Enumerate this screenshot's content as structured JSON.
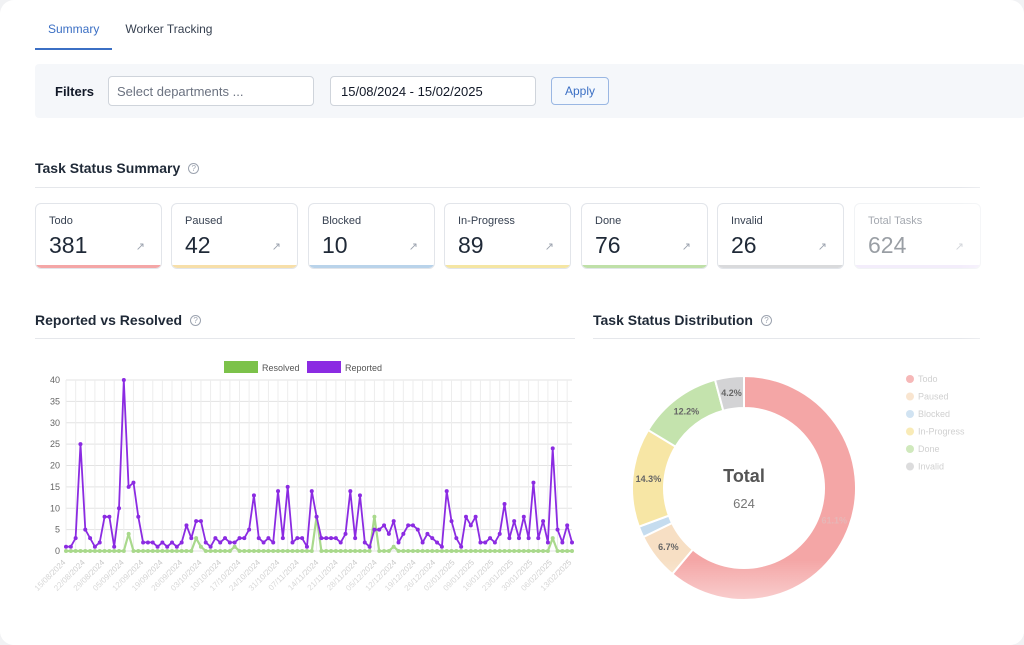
{
  "tabs": [
    {
      "label": "Summary",
      "active": true
    },
    {
      "label": "Worker Tracking",
      "active": false
    }
  ],
  "filters": {
    "label": "Filters",
    "departments_placeholder": "Select departments ...",
    "date_range": "15/08/2024 - 15/02/2025",
    "apply_label": "Apply"
  },
  "summary": {
    "title": "Task Status Summary",
    "cards": [
      {
        "label": "Todo",
        "value": "381",
        "color": "#f4a6a6"
      },
      {
        "label": "Paused",
        "value": "42",
        "color": "#f7dfa9"
      },
      {
        "label": "Blocked",
        "value": "10",
        "color": "#b9d3ea"
      },
      {
        "label": "In-Progress",
        "value": "89",
        "color": "#f5e6a3"
      },
      {
        "label": "Done",
        "value": "76",
        "color": "#bfe0a8"
      },
      {
        "label": "Invalid",
        "value": "26",
        "color": "#d9dadc"
      },
      {
        "label": "Total Tasks",
        "value": "624",
        "color": "#e5d9f7"
      }
    ]
  },
  "reported_section": {
    "title": "Reported vs Resolved"
  },
  "distribution_section": {
    "title": "Task Status Distribution"
  },
  "chart_data": [
    {
      "type": "line",
      "legend": [
        {
          "name": "Resolved",
          "color": "#7cc24a"
        },
        {
          "name": "Reported",
          "color": "#8b2be2"
        }
      ],
      "ylim": [
        0,
        40
      ],
      "yticks": [
        0,
        5,
        10,
        15,
        20,
        25,
        30,
        35,
        40
      ],
      "x_tick_labels": [
        "15/08/2024",
        "22/08/2024",
        "29/08/2024",
        "05/09/2024",
        "12/09/2024",
        "19/09/2024",
        "26/09/2024",
        "03/10/2024",
        "10/10/2024",
        "17/10/2024",
        "24/10/2024",
        "31/10/2024",
        "07/11/2024",
        "14/11/2024",
        "21/11/2024",
        "28/11/2024",
        "05/12/2024",
        "12/12/2024",
        "19/12/2024",
        "26/12/2024",
        "02/01/2025",
        "09/01/2025",
        "16/01/2025",
        "23/01/2025",
        "30/01/2025",
        "06/02/2025",
        "13/02/2025"
      ],
      "series": [
        {
          "name": "Reported",
          "values": [
            1,
            1,
            3,
            25,
            5,
            3,
            1,
            2,
            8,
            8,
            1,
            10,
            40,
            15,
            16,
            8,
            2,
            2,
            2,
            1,
            2,
            1,
            2,
            1,
            2,
            6,
            3,
            7,
            7,
            2,
            1,
            3,
            2,
            3,
            2,
            2,
            3,
            3,
            5,
            13,
            3,
            2,
            3,
            2,
            14,
            3,
            15,
            2,
            3,
            3,
            1,
            14,
            8,
            3,
            3,
            3,
            3,
            2,
            4,
            14,
            3,
            13,
            2,
            1,
            5,
            5,
            6,
            4,
            7,
            2,
            4,
            6,
            6,
            5,
            2,
            4,
            3,
            2,
            1,
            14,
            7,
            3,
            1,
            8,
            6,
            8,
            2,
            2,
            3,
            2,
            4,
            11,
            3,
            7,
            3,
            8,
            3,
            16,
            3,
            7,
            2,
            24,
            5,
            2,
            6,
            2
          ]
        },
        {
          "name": "Resolved",
          "values": [
            0,
            0,
            0,
            0,
            0,
            0,
            0,
            0,
            0,
            0,
            0,
            0,
            0,
            4,
            0,
            0,
            0,
            0,
            0,
            0,
            0,
            0,
            0,
            0,
            0,
            0,
            0,
            3,
            1,
            0,
            0,
            0,
            0,
            0,
            0,
            1,
            0,
            0,
            0,
            0,
            0,
            0,
            0,
            0,
            0,
            0,
            0,
            0,
            0,
            0,
            0,
            0,
            8,
            0,
            0,
            0,
            0,
            0,
            0,
            0,
            0,
            0,
            0,
            0,
            8,
            0,
            0,
            0,
            1,
            0,
            0,
            0,
            0,
            0,
            0,
            0,
            0,
            0,
            0,
            0,
            0,
            0,
            0,
            0,
            0,
            0,
            0,
            0,
            0,
            0,
            0,
            0,
            0,
            0,
            0,
            0,
            0,
            0,
            0,
            0,
            0,
            3,
            0,
            0,
            0,
            0
          ]
        }
      ]
    },
    {
      "type": "pie",
      "center_title": "Total",
      "center_value": "624",
      "slices": [
        {
          "name": "Todo",
          "value": 381,
          "pct_label": "61.1%",
          "color": "#f4a6a6"
        },
        {
          "name": "Paused",
          "value": 42,
          "pct_label": "6.7%",
          "color": "#f7dfc4"
        },
        {
          "name": "Blocked",
          "value": 10,
          "pct_label": "",
          "color": "#c5dcef"
        },
        {
          "name": "In-Progress",
          "value": 89,
          "pct_label": "14.3%",
          "color": "#f7e6a5"
        },
        {
          "name": "Done",
          "value": 76,
          "pct_label": "12.2%",
          "color": "#c4e3ad"
        },
        {
          "name": "Invalid",
          "value": 26,
          "pct_label": "4.2%",
          "color": "#d3d3d5"
        }
      ],
      "legend": [
        "Todo",
        "Paused",
        "Blocked",
        "In-Progress",
        "Done",
        "Invalid"
      ]
    }
  ]
}
